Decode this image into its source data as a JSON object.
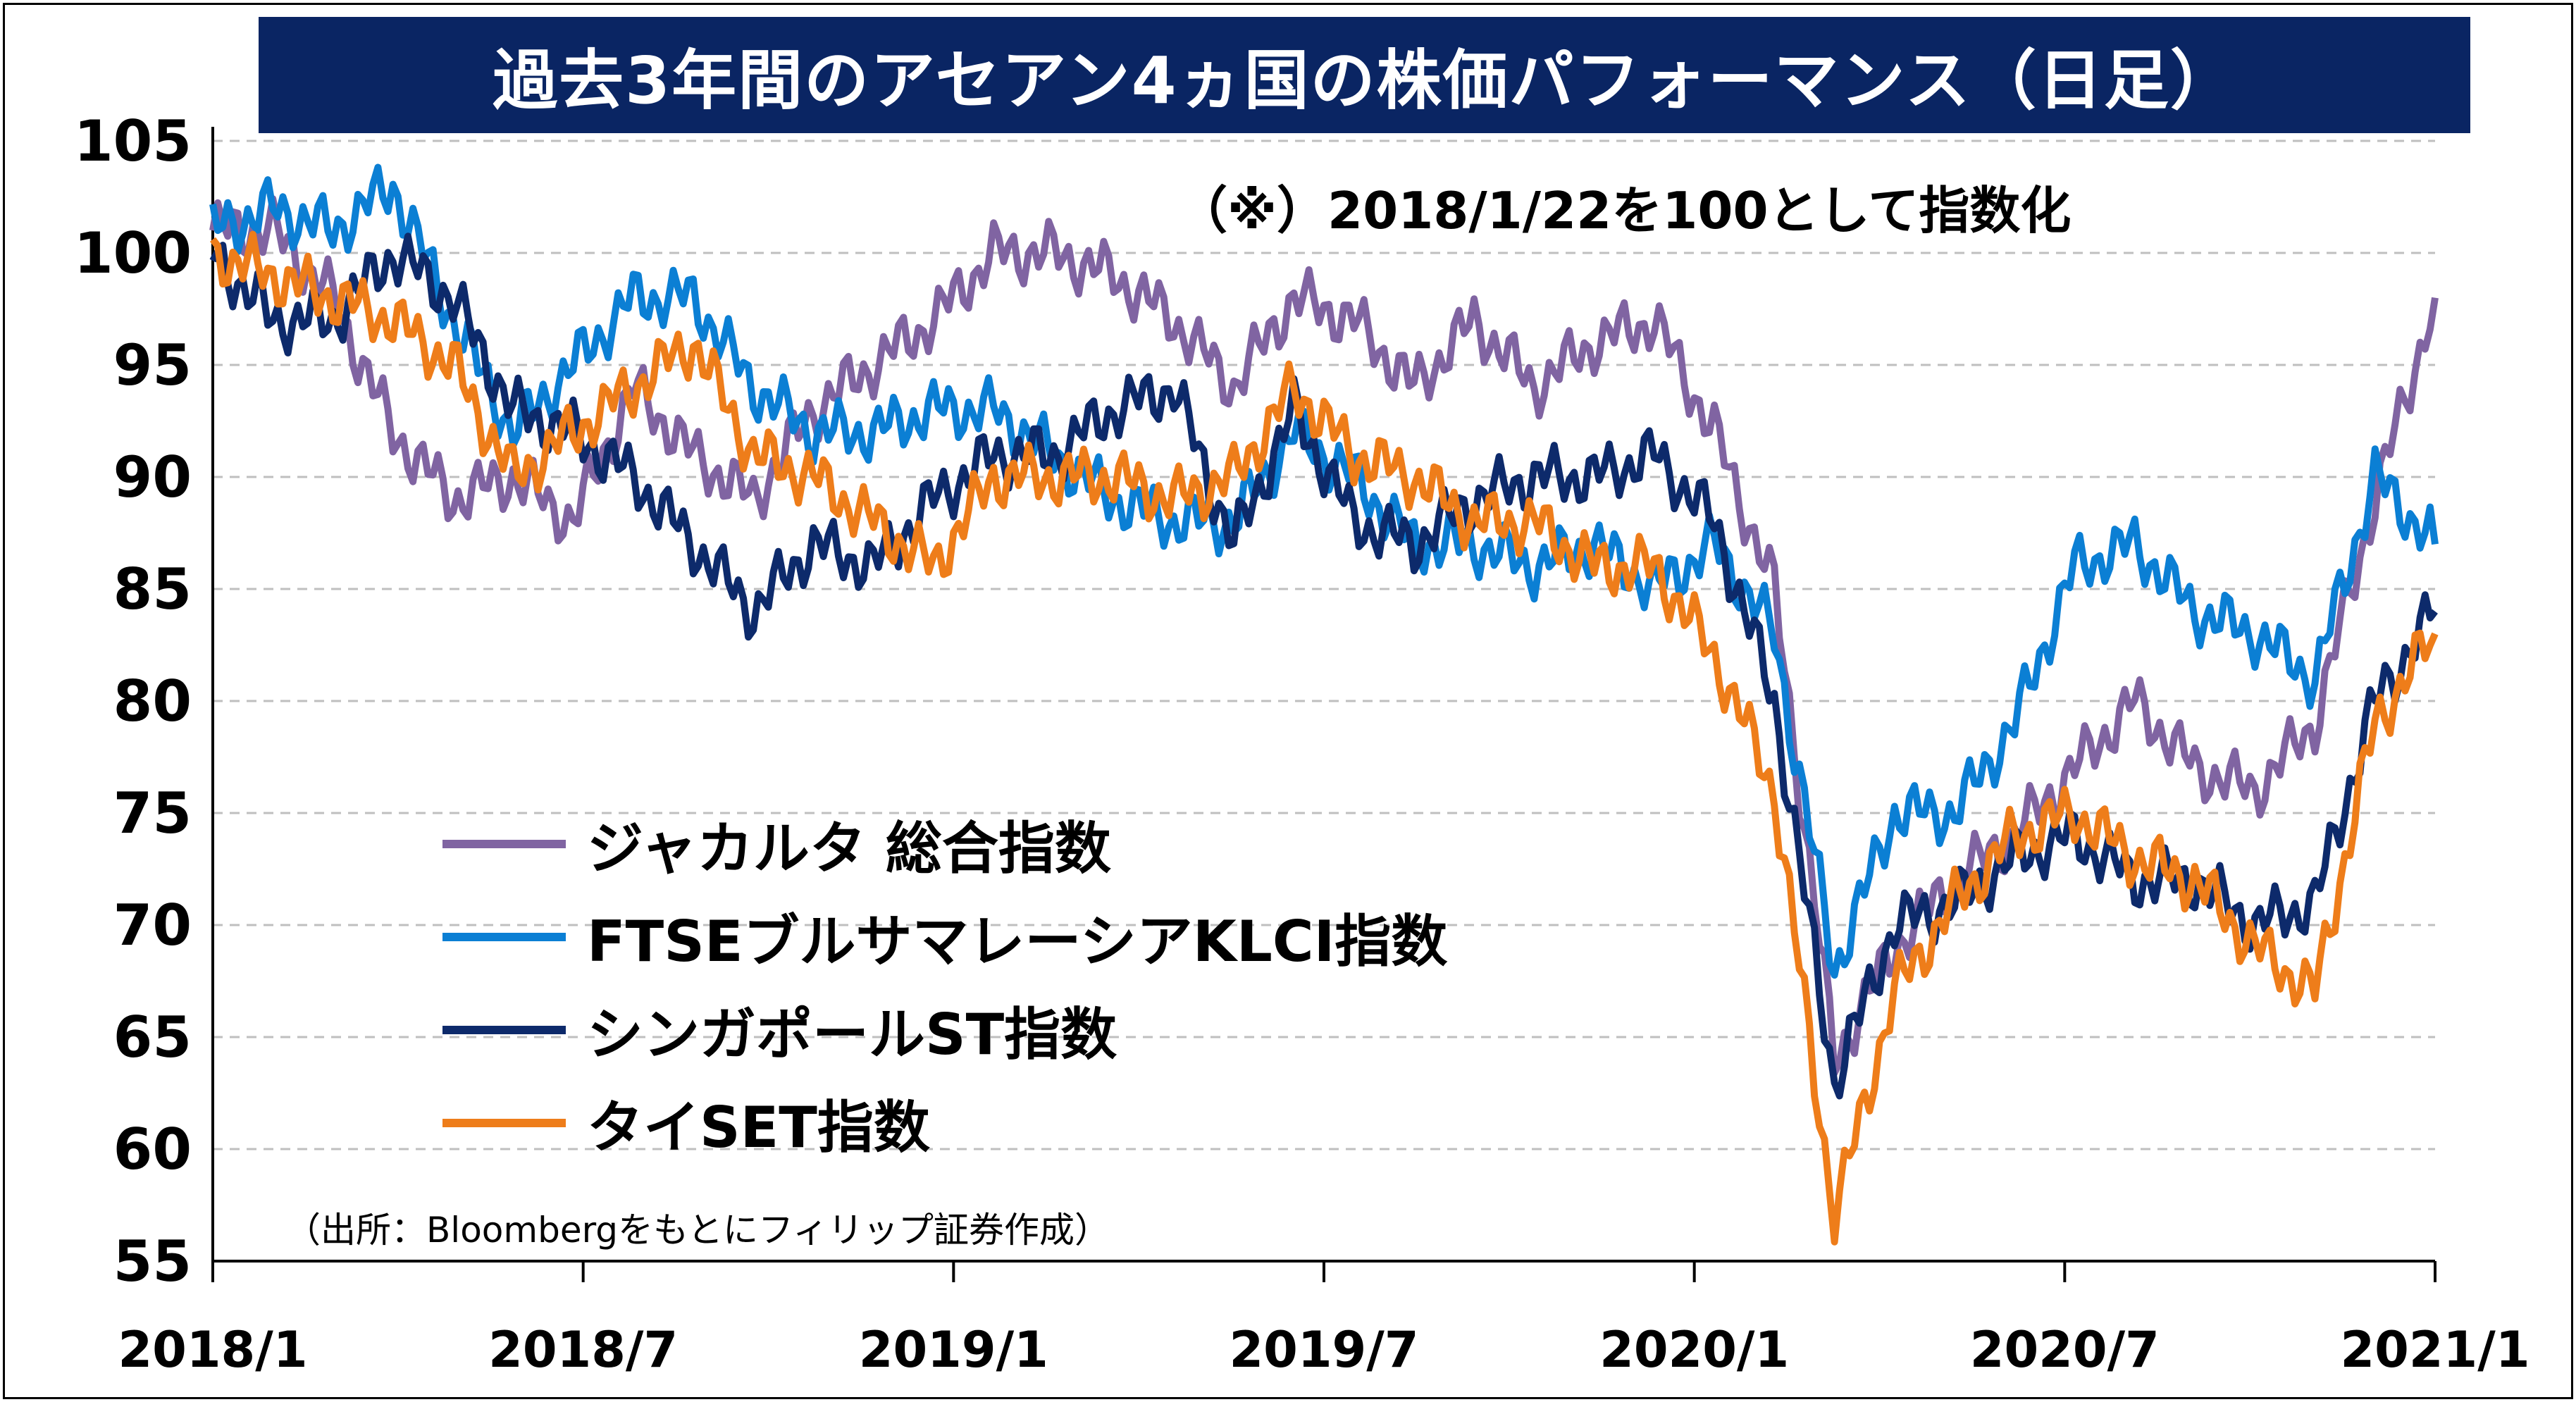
{
  "title": "過去3年間のアセアン4ヵ国の株価パフォーマンス（日足）",
  "note": "（※）2018/1/22を100として指数化",
  "source": "（出所：Bloombergをもとにフィリップ証券作成）",
  "colors": {
    "title_bg": "#0a2563",
    "jakarta": "#8064a2",
    "klci": "#0b7fd4",
    "sti": "#0d2a6b",
    "set": "#ee7d1a",
    "grid": "#bfbfbf"
  },
  "chart_data": {
    "type": "line",
    "title": "過去3年間のアセアン4ヵ国の株価パフォーマンス（日足）",
    "ylim": [
      55,
      105
    ],
    "yticks": [
      "105",
      "100",
      "95",
      "90",
      "85",
      "80",
      "75",
      "70",
      "65",
      "60",
      "55"
    ],
    "xticks": [
      "2018/1",
      "2018/7",
      "2019/1",
      "2019/7",
      "2020/1",
      "2020/7",
      "2021/1"
    ],
    "grid": "horizontal dashed",
    "legend_position": "lower-left inside",
    "x": [
      "2018/1/22",
      "2018/2",
      "2018/3",
      "2018/4",
      "2018/5",
      "2018/6",
      "2018/7",
      "2018/8",
      "2018/9",
      "2018/10",
      "2018/11",
      "2018/12",
      "2019/1",
      "2019/2",
      "2019/3",
      "2019/4",
      "2019/5",
      "2019/6",
      "2019/7",
      "2019/8",
      "2019/9",
      "2019/10",
      "2019/11",
      "2019/12",
      "2020/1",
      "2020/2",
      "2020/3/1",
      "2020/3/23",
      "2020/4",
      "2020/5",
      "2020/6",
      "2020/7",
      "2020/8",
      "2020/9",
      "2020/10",
      "2020/11",
      "2020/12",
      "2021/1"
    ],
    "series": [
      {
        "name": "ジャカルタ 総合指数",
        "color": "#8064a2",
        "values": [
          101,
          101,
          98,
          92,
          89,
          90,
          88,
          94,
          91,
          89,
          93,
          95,
          97,
          100,
          100,
          99,
          97,
          94,
          98,
          97,
          94,
          97,
          94,
          96,
          97,
          92,
          85,
          64,
          69,
          72,
          74,
          77,
          80,
          77,
          76,
          79,
          89,
          98
        ]
      },
      {
        "name": "FTSEブルサマレーシアKLCI指数",
        "color": "#0b7fd4",
        "values": [
          101,
          102,
          101,
          103,
          97,
          92,
          95,
          98,
          98,
          94,
          92,
          92,
          93,
          93,
          91,
          89,
          88,
          88,
          92,
          90,
          87,
          87,
          86,
          87,
          85,
          87,
          83,
          68,
          75,
          75,
          79,
          86,
          87,
          84,
          83,
          81,
          90,
          87
        ]
      },
      {
        "name": "シンガポールST指数",
        "color": "#0d2a6b",
        "values": [
          100,
          97,
          97,
          100,
          98,
          93,
          92,
          90,
          87,
          84,
          87,
          86,
          89,
          91,
          91,
          93,
          94,
          87,
          93,
          88,
          87,
          89,
          90,
          90,
          91,
          88,
          80,
          63,
          70,
          71,
          73,
          74,
          72,
          72,
          70,
          71,
          80,
          84
        ]
      },
      {
        "name": "タイSET指数",
        "color": "#ee7d1a",
        "values": [
          100,
          99,
          98,
          97,
          95,
          90,
          92,
          94,
          96,
          91,
          90,
          88,
          86,
          90,
          90,
          90,
          89,
          90,
          94,
          91,
          90,
          88,
          88,
          86,
          86,
          82,
          76,
          57,
          67,
          71,
          74,
          75,
          73,
          72,
          69,
          67,
          79,
          83
        ]
      }
    ]
  }
}
